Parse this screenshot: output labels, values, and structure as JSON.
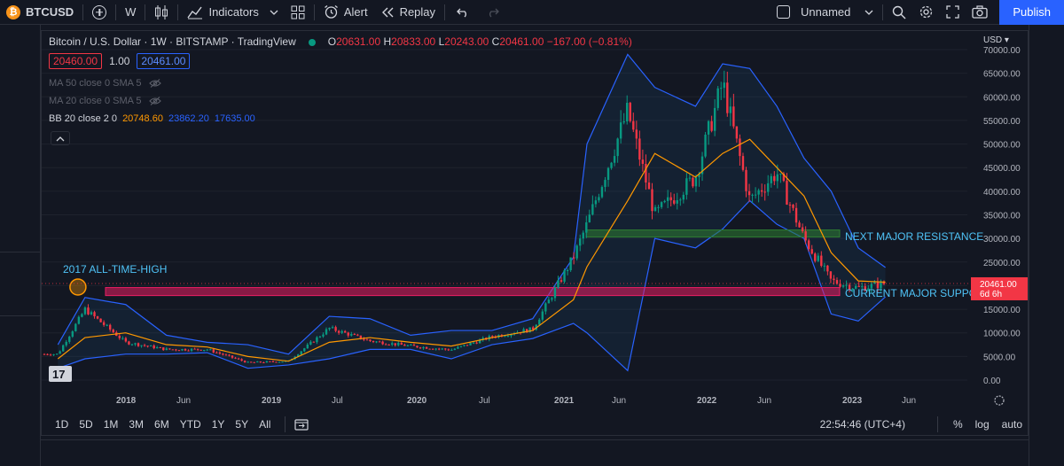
{
  "toolbar": {
    "symbol_logo": "₿",
    "symbol": "BTCUSD",
    "interval": "W",
    "indicators_label": "Indicators",
    "alert_label": "Alert",
    "replay_label": "Replay",
    "layout_name": "Unnamed",
    "publish_label": "Publish"
  },
  "legend": {
    "title": "Bitcoin / U.S. Dollar · 1W · BITSTAMP · TradingView",
    "status_color": "#089981",
    "open_label": "O",
    "open": "20631.00",
    "high_label": "H",
    "high": "20833.00",
    "low_label": "L",
    "low": "20243.00",
    "close_label": "C",
    "close": "20461.00",
    "change": "−167.00 (−0.81%)",
    "sell_price": "20460.00",
    "quantity": "1.00",
    "buy_price": "20461.00",
    "ma50": "MA 50 close 0 SMA 5",
    "ma20": "MA 20 close 0 SMA 5",
    "bb_label": "BB 20 close 2 0",
    "bb_basis": "20748.60",
    "bb_upper": "23862.20",
    "bb_lower": "17635.00"
  },
  "price_axis": {
    "currency": "USD",
    "labels": [
      "70000.00",
      "65000.00",
      "60000.00",
      "55000.00",
      "50000.00",
      "45000.00",
      "40000.00",
      "35000.00",
      "30000.00",
      "25000.00",
      "15000.00",
      "10000.00",
      "5000.00",
      "0.00"
    ],
    "current_price": "20461.00",
    "countdown": "6d 6h"
  },
  "time_axis": {
    "labels": [
      "2018",
      "Jun",
      "2019",
      "Jul",
      "2020",
      "Jul",
      "2021",
      "Jun",
      "2022",
      "Jun",
      "2023",
      "Jun"
    ]
  },
  "annotations": {
    "ath_label": "2017 ALL-TIME-HIGH",
    "resistance_label": "NEXT MAJOR RESISTANCE",
    "support_label": "CURRENT MAJOR SUPPORT"
  },
  "bottom_bar": {
    "ranges": [
      "1D",
      "5D",
      "1M",
      "3M",
      "6M",
      "YTD",
      "1Y",
      "5Y",
      "All"
    ],
    "time": "22:54:46 (UTC+4)",
    "percent": "%",
    "log": "log",
    "auto": "auto"
  },
  "chart_data": {
    "type": "candlestick",
    "series_shown": [
      "BTCUSD weekly",
      "BB basis (orange)",
      "BB upper/lower (blue)"
    ],
    "x": [
      "2017-10",
      "2017-12",
      "2018-03",
      "2018-06",
      "2018-09",
      "2018-12",
      "2019-03",
      "2019-06",
      "2019-09",
      "2019-12",
      "2020-03",
      "2020-06",
      "2020-09",
      "2020-12",
      "2021-01",
      "2021-04",
      "2021-06",
      "2021-09",
      "2021-11",
      "2022-01",
      "2022-03",
      "2022-05",
      "2022-07",
      "2022-09",
      "2022-11"
    ],
    "close": [
      5500,
      15000,
      8000,
      6500,
      6500,
      3700,
      4000,
      11000,
      8300,
      7200,
      6400,
      9200,
      10800,
      26000,
      33000,
      57000,
      35000,
      43000,
      63000,
      38000,
      44000,
      30000,
      21000,
      19500,
      20461
    ],
    "bb_upper": [
      7500,
      17500,
      16000,
      9500,
      8000,
      7500,
      5500,
      13500,
      13000,
      9500,
      10500,
      10500,
      13000,
      26000,
      50000,
      69000,
      62000,
      58000,
      67000,
      66000,
      58000,
      47000,
      40000,
      28000,
      23862
    ],
    "bb_lower": [
      2500,
      4500,
      5500,
      5500,
      5800,
      2500,
      3200,
      4500,
      6500,
      6500,
      4500,
      7500,
      8800,
      12000,
      10000,
      2000,
      30000,
      28000,
      32000,
      38000,
      33000,
      30000,
      14000,
      12500,
      17635
    ],
    "bb_basis": [
      4500,
      9000,
      10000,
      7500,
      7000,
      5000,
      4000,
      8000,
      9000,
      8000,
      7200,
      9000,
      10500,
      17000,
      24000,
      38000,
      48000,
      43000,
      48000,
      51000,
      45000,
      39000,
      27000,
      21000,
      20748
    ],
    "zones": [
      {
        "label": "NEXT MAJOR RESISTANCE",
        "from": 30300,
        "to": 31800,
        "color": "#2e7d32"
      },
      {
        "label": "CURRENT MAJOR SUPPORT",
        "from": 17900,
        "to": 19600,
        "color": "#e91e63"
      }
    ],
    "ath_marker": {
      "date": "2017-12",
      "price": 19700
    },
    "ylim": [
      0,
      70000
    ],
    "xlabel": "",
    "ylabel": ""
  }
}
